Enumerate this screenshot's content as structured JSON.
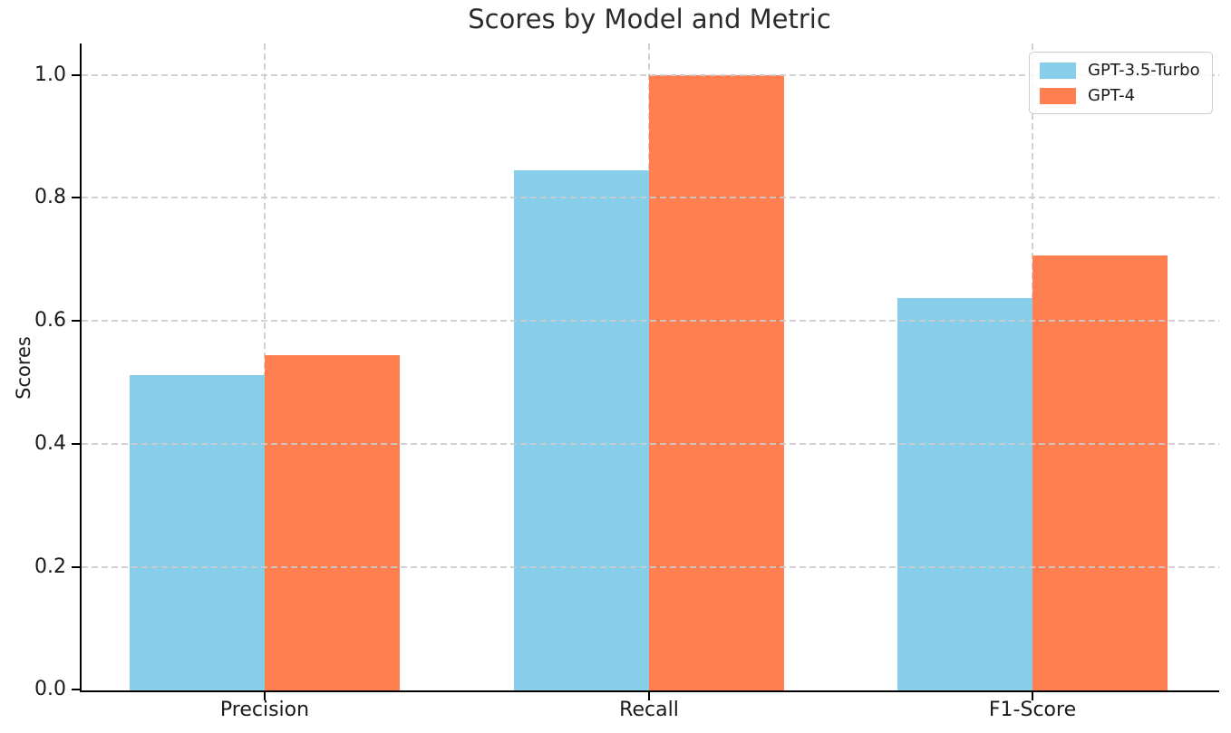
{
  "chart_data": {
    "type": "bar",
    "title": "Scores by Model and Metric",
    "xlabel": "",
    "ylabel": "Scores",
    "categories": [
      "Precision",
      "Recall",
      "F1-Score"
    ],
    "series": [
      {
        "name": "GPT-3.5-Turbo",
        "color": "#87CEEB",
        "values": [
          0.512,
          0.845,
          0.638
        ]
      },
      {
        "name": "GPT-4",
        "color": "#FF7F50",
        "values": [
          0.545,
          1.0,
          0.706
        ]
      }
    ],
    "ylim": [
      0,
      1.05
    ],
    "yticks": [
      0.0,
      0.2,
      0.4,
      0.6,
      0.8,
      1.0
    ],
    "ytick_labels": [
      "0.0",
      "0.2",
      "0.4",
      "0.6",
      "0.8",
      "1.0"
    ],
    "grid": {
      "visible": true,
      "style": "dashed",
      "axes": "both",
      "color": "#cccccc",
      "above_bars": true
    },
    "legend": {
      "position": "upper-right"
    },
    "colors": {
      "background": "#ffffff",
      "spine": "#000000",
      "text": "#1a1a1a",
      "title": "#2b2b2b"
    }
  }
}
